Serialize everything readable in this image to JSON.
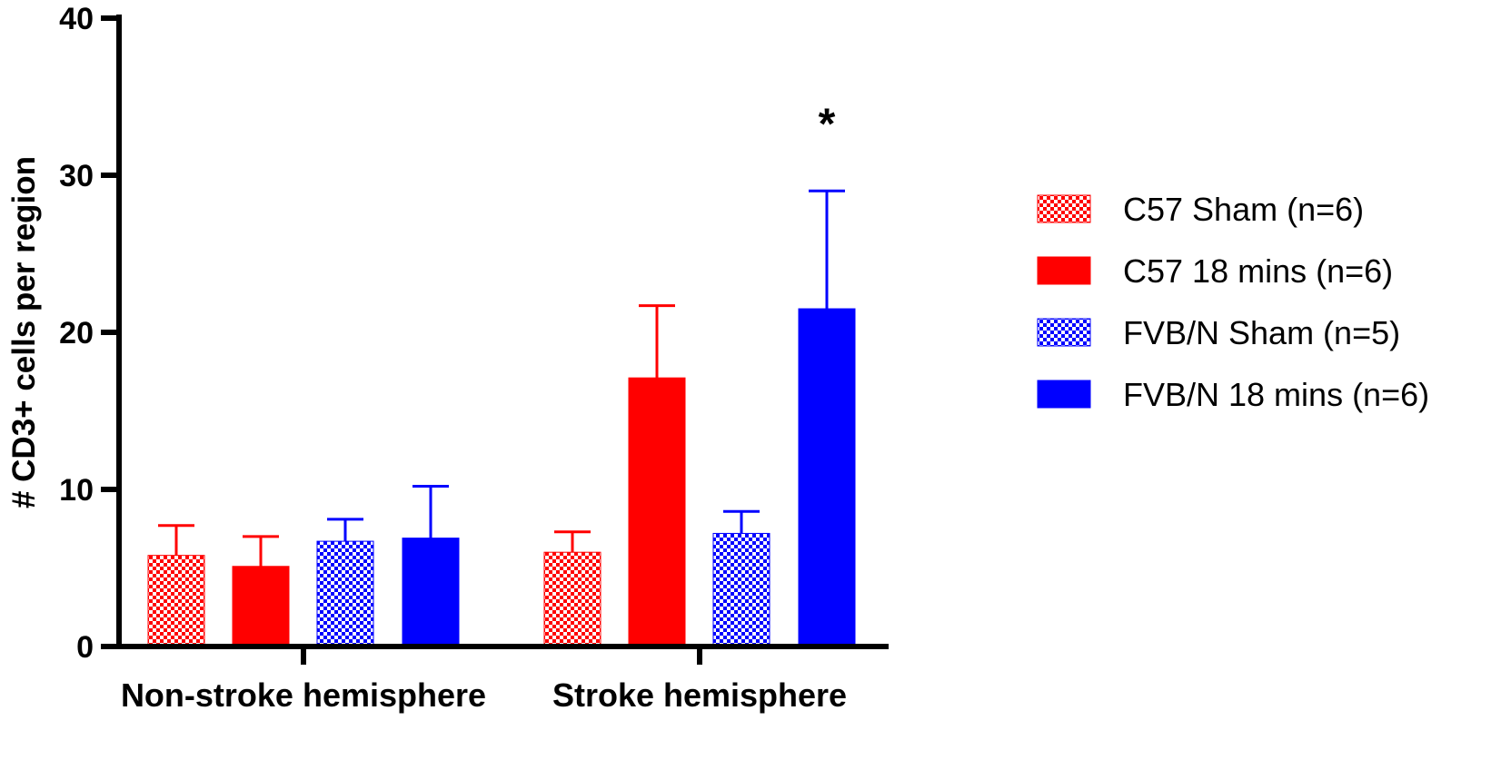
{
  "chart_data": {
    "type": "bar",
    "title": "",
    "xlabel": "",
    "ylabel": "# CD3+ cells per region",
    "ylim": [
      0,
      40
    ],
    "yticks": [
      0,
      10,
      20,
      30,
      40
    ],
    "grid": false,
    "legend_position": "right",
    "categories": [
      "Non-stroke hemisphere",
      "Stroke hemisphere"
    ],
    "series": [
      {
        "name": "C57 Sham (n=6)",
        "color": "#ff0000",
        "pattern": "checkered",
        "values": [
          5.8,
          6.0
        ],
        "errors": [
          1.9,
          1.3
        ]
      },
      {
        "name": "C57 18 mins (n=6)",
        "color": "#ff0000",
        "pattern": "solid",
        "values": [
          5.1,
          17.1
        ],
        "errors": [
          1.9,
          4.6
        ]
      },
      {
        "name": "FVB/N Sham (n=5)",
        "color": "#0000ff",
        "pattern": "checkered",
        "values": [
          6.7,
          7.2
        ],
        "errors": [
          1.4,
          1.4
        ]
      },
      {
        "name": "FVB/N 18 mins (n=6)",
        "color": "#0000ff",
        "pattern": "solid",
        "values": [
          6.9,
          21.5
        ],
        "errors": [
          3.3,
          7.5
        ]
      }
    ],
    "annotations": [
      {
        "text": "*",
        "category": "Stroke hemisphere",
        "series": "FVB/N 18 mins (n=6)"
      }
    ]
  }
}
